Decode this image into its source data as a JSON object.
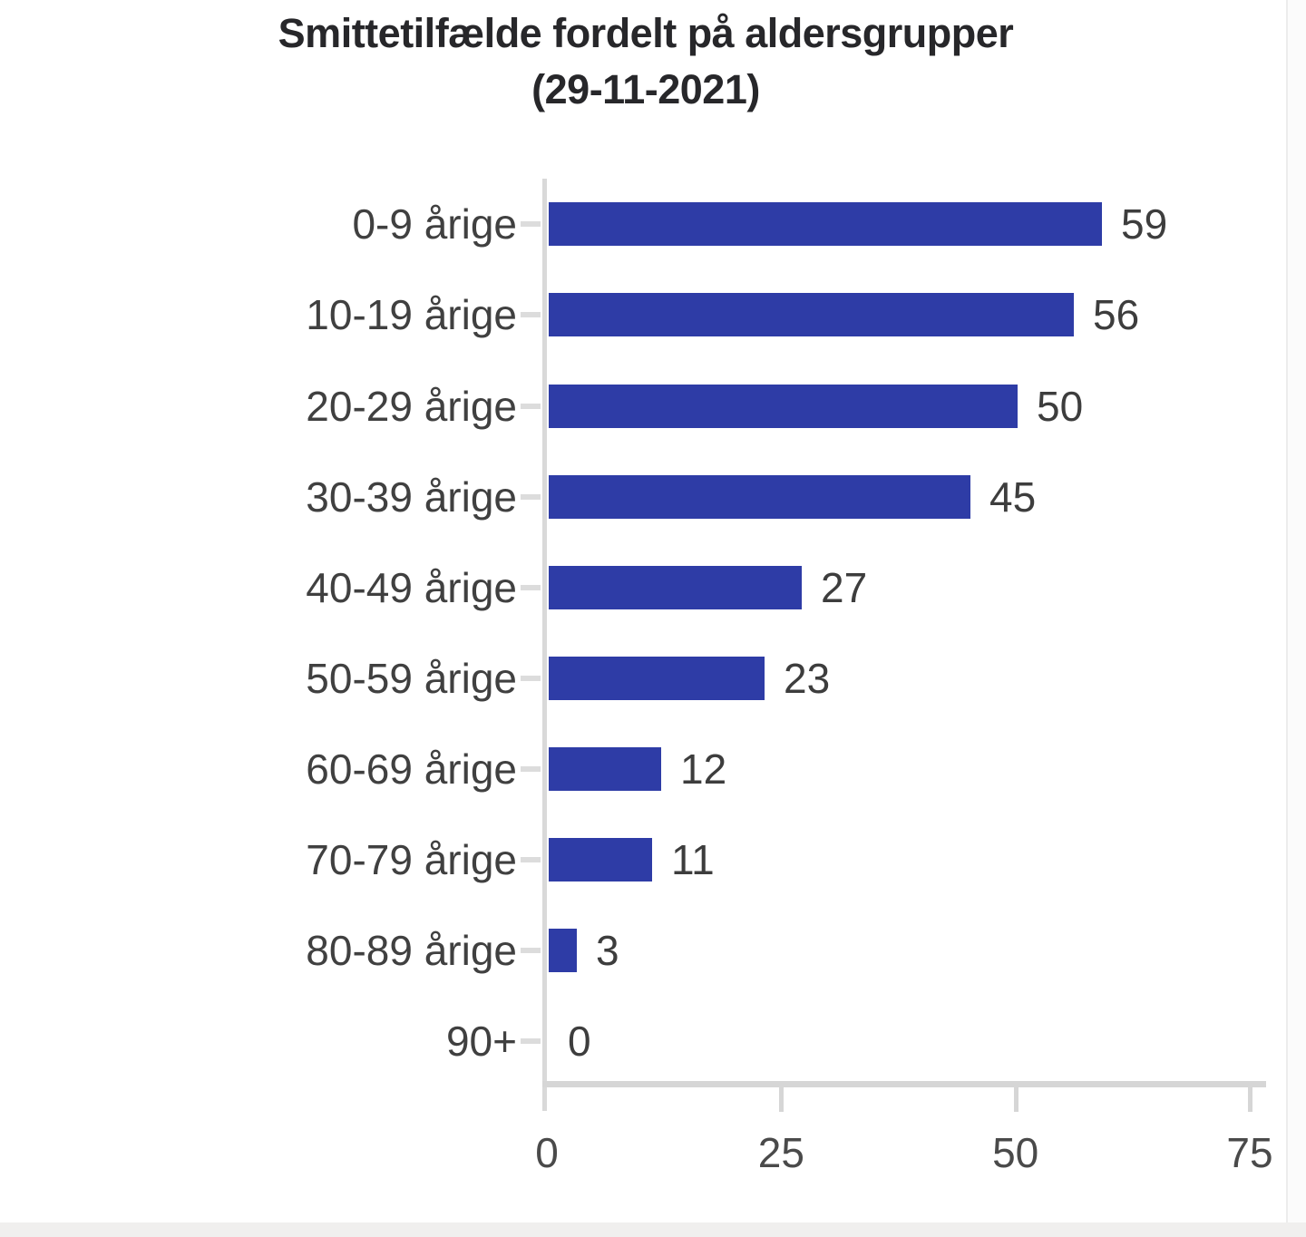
{
  "chart_data": {
    "type": "bar",
    "orientation": "horizontal",
    "title_line1": "Smittetilfælde fordelt på aldersgrupper",
    "title_line2": "(29-11-2021)",
    "categories": [
      "0-9 årige",
      "10-19 årige",
      "20-29 årige",
      "30-39 årige",
      "40-49 årige",
      "50-59 årige",
      "60-69 årige",
      "70-79 årige",
      "80-89 årige",
      "90+"
    ],
    "values": [
      59,
      56,
      50,
      45,
      27,
      23,
      12,
      11,
      3,
      0
    ],
    "data_labels_shown": true,
    "xlabel": "",
    "ylabel": "",
    "xlim": [
      0,
      75
    ],
    "x_ticks": [
      "0",
      "25",
      "50",
      "75"
    ],
    "grid": false,
    "legend": false,
    "bar_color": "#2e3ca6",
    "axis_line_color": "#d6d6d6",
    "category_label_color": "#404040",
    "value_label_color": "#3d3d3d",
    "tick_label_color": "#4a4a4a",
    "title_color": "#27272a",
    "background_color": "#ffffff",
    "footer_strip_color": "#f0efee"
  }
}
